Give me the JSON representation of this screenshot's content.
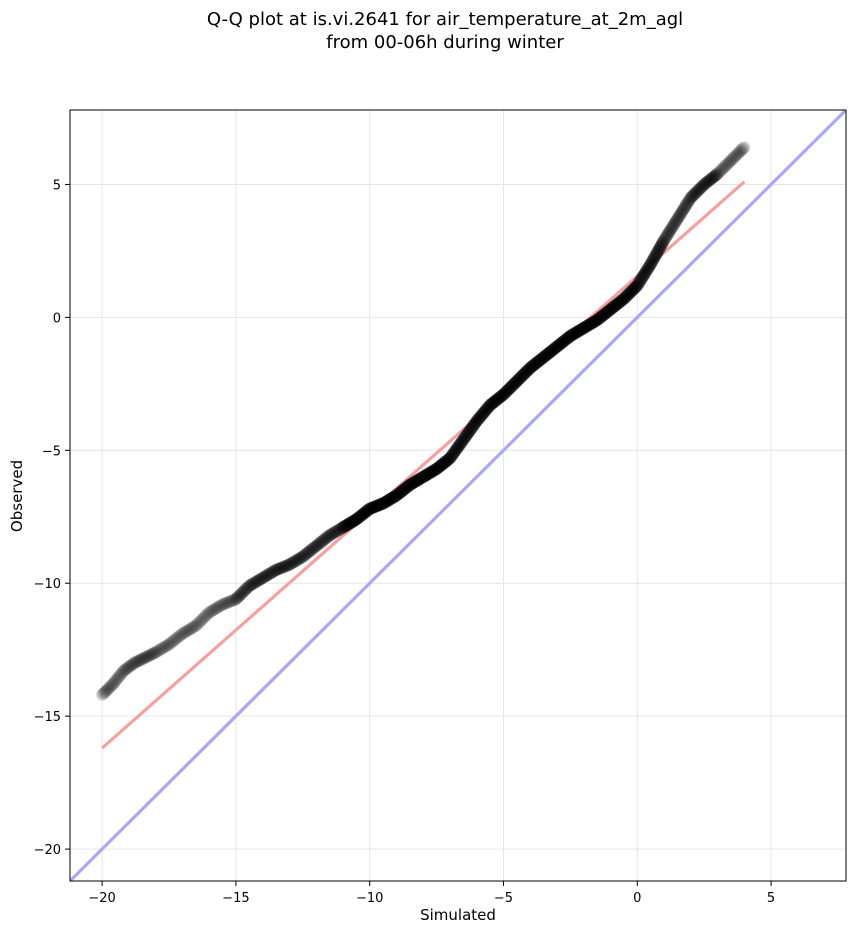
{
  "chart_data": {
    "type": "scatter",
    "title_line1": "Q-Q plot at is.vi.2641 for air_temperature_at_2m_agl",
    "title_line2": "from 00-06h during winter",
    "xlabel": "Simulated",
    "ylabel": "Observed",
    "xlim": [
      -21.2,
      7.8
    ],
    "ylim": [
      -21.2,
      7.8
    ],
    "xticks": [
      -20,
      -15,
      -10,
      -5,
      0,
      5
    ],
    "yticks": [
      -20,
      -15,
      -10,
      -5,
      0,
      5
    ],
    "xtick_labels": [
      "−20",
      "−15",
      "−10",
      "−5",
      "0",
      "5"
    ],
    "ytick_labels": [
      "−20",
      "−15",
      "−10",
      "−5",
      "0",
      "5"
    ],
    "grid": true,
    "quantiles_simulated": [
      -20.0,
      -19.6,
      -19.2,
      -18.8,
      -18.4,
      -18.0,
      -17.5,
      -17.0,
      -16.5,
      -16.0,
      -15.5,
      -15.0,
      -14.5,
      -14.0,
      -13.5,
      -13.0,
      -12.5,
      -12.0,
      -11.5,
      -11.0,
      -10.5,
      -10.0,
      -9.5,
      -9.0,
      -8.5,
      -8.0,
      -7.5,
      -7.0,
      -6.5,
      -6.0,
      -5.5,
      -5.0,
      -4.5,
      -4.0,
      -3.5,
      -3.0,
      -2.5,
      -2.0,
      -1.5,
      -1.0,
      -0.5,
      0.0,
      0.5,
      1.0,
      1.5,
      2.0,
      2.5,
      3.0,
      3.5,
      4.0
    ],
    "quantiles_observed": [
      -14.2,
      -13.8,
      -13.3,
      -13.0,
      -12.8,
      -12.6,
      -12.3,
      -11.9,
      -11.6,
      -11.1,
      -10.8,
      -10.6,
      -10.1,
      -9.8,
      -9.5,
      -9.3,
      -9.0,
      -8.6,
      -8.2,
      -7.9,
      -7.6,
      -7.2,
      -7.0,
      -6.7,
      -6.3,
      -6.0,
      -5.7,
      -5.3,
      -4.6,
      -3.9,
      -3.3,
      -2.9,
      -2.4,
      -1.9,
      -1.5,
      -1.1,
      -0.7,
      -0.4,
      -0.1,
      0.3,
      0.7,
      1.2,
      2.0,
      2.9,
      3.7,
      4.5,
      5.0,
      5.4,
      5.9,
      6.4
    ],
    "fit_line": {
      "x": [
        -20,
        4
      ],
      "y": [
        -16.2,
        5.1
      ],
      "color": "#f5a0a0"
    },
    "identity_line": {
      "x": [
        -21.2,
        7.8
      ],
      "y": [
        -21.2,
        7.8
      ],
      "color": "#a8a8f5"
    },
    "marker_color": "#000000"
  }
}
